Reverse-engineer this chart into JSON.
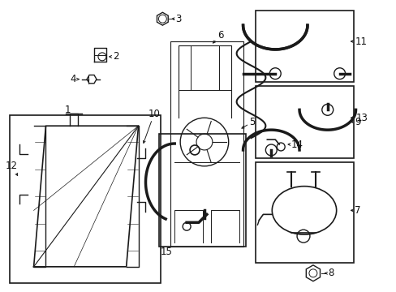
{
  "bg_color": "#ffffff",
  "line_color": "#1a1a1a",
  "fig_width": 4.89,
  "fig_height": 3.6,
  "dpi": 100,
  "label_fontsize": 8.5,
  "component_lw": 1.0
}
